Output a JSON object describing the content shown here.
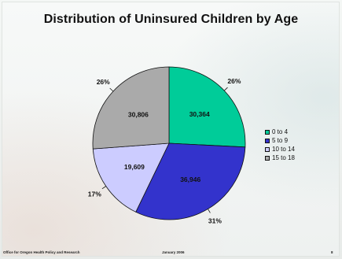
{
  "slide": {
    "footer_left": "Office for Oregon Health Policy and Research",
    "footer_center": "January 2006",
    "footer_right": "8"
  },
  "chart_data": {
    "type": "pie",
    "title": "Distribution of Uninsured Children by Age",
    "slices": [
      {
        "label": "0 to 4",
        "value": 30364,
        "value_label": "30,364",
        "percent_label": "26%",
        "color": "#00cc99"
      },
      {
        "label": "5 to 9",
        "value": 36946,
        "value_label": "36,946",
        "percent_label": "31%",
        "color": "#3333cc"
      },
      {
        "label": "10 to 14",
        "value": 19609,
        "value_label": "19,609",
        "percent_label": "17%",
        "color": "#ccccff"
      },
      {
        "label": "15 to 18",
        "value": 30806,
        "value_label": "30,806",
        "percent_label": "26%",
        "color": "#aaaaaa"
      }
    ],
    "start_angle": "12 o'clock, clockwise",
    "legend_position": "right"
  }
}
